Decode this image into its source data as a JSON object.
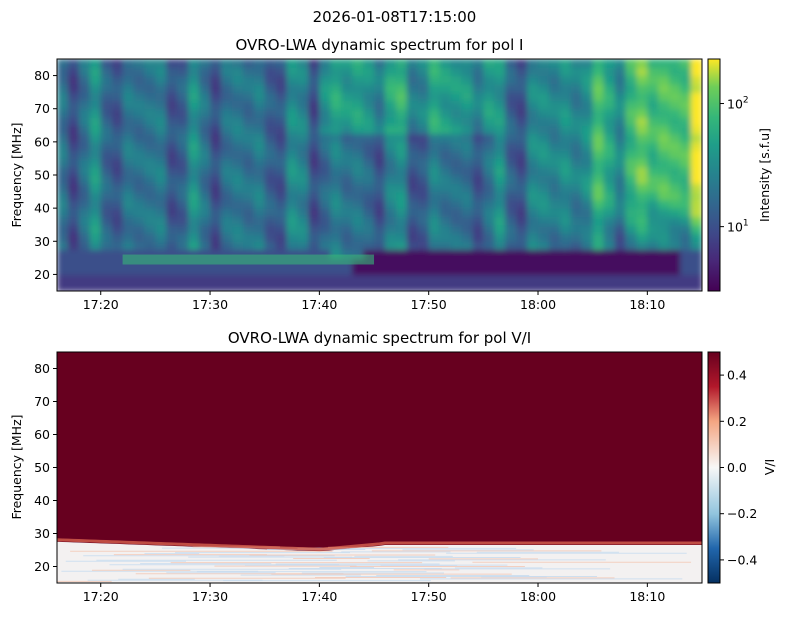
{
  "suptitle": "2026-01-08T17:15:00",
  "chart_data": [
    {
      "type": "heatmap",
      "title": "OVRO-LWA dynamic spectrum for pol I",
      "xlabel": "",
      "ylabel": "Frequency [MHz]",
      "x_ticks": [
        "17:20",
        "17:30",
        "17:40",
        "17:50",
        "18:00",
        "18:10"
      ],
      "x_tick_minutes": [
        20,
        30,
        40,
        50,
        60,
        70
      ],
      "xlim_minutes": [
        16,
        75
      ],
      "y_ticks": [
        20,
        30,
        40,
        50,
        60,
        70,
        80
      ],
      "ylim": [
        15,
        85
      ],
      "colormap": "viridis",
      "colorbar": {
        "label": "Intensity [s.f.u]",
        "scale": "log",
        "range": [
          3,
          230
        ],
        "ticks": [
          {
            "base": "10",
            "exp": "1",
            "value": 10
          },
          {
            "base": "10",
            "exp": "2",
            "value": 100
          }
        ]
      },
      "features": [
        {
          "desc": "bright emission increasing toward the late times, high frequencies",
          "minute_range": [
            60,
            75
          ],
          "freq_range": [
            35,
            85
          ],
          "level_log10": 2.3
        },
        {
          "desc": "broad diffuse emission",
          "minute_range": [
            16,
            60
          ],
          "freq_range": [
            30,
            85
          ],
          "level_log10": 1.3
        },
        {
          "desc": "low-intensity band below the cutoff",
          "minute_range": [
            44,
            73
          ],
          "freq_range": [
            22,
            29
          ],
          "level_log10": 0.5
        },
        {
          "desc": "narrow bright line",
          "minute_range": [
            22,
            45
          ],
          "freq_range": [
            23,
            26
          ],
          "level_log10": 1.9
        }
      ]
    },
    {
      "type": "heatmap",
      "title": "OVRO-LWA dynamic spectrum for pol V/I",
      "xlabel": "",
      "ylabel": "Frequency [MHz]",
      "x_ticks": [
        "17:20",
        "17:30",
        "17:40",
        "17:50",
        "18:00",
        "18:10"
      ],
      "x_tick_minutes": [
        20,
        30,
        40,
        50,
        60,
        70
      ],
      "xlim_minutes": [
        16,
        75
      ],
      "y_ticks": [
        20,
        30,
        40,
        50,
        60,
        70,
        80
      ],
      "ylim": [
        15,
        85
      ],
      "colormap": "RdBu_r",
      "colorbar": {
        "label": "V/I",
        "scale": "linear",
        "range": [
          -0.5,
          0.5
        ],
        "ticks": [
          {
            "text": "−0.4",
            "value": -0.4
          },
          {
            "text": "−0.2",
            "value": -0.2
          },
          {
            "text": "0.0",
            "value": 0
          },
          {
            "text": "0.2",
            "value": 0.2
          },
          {
            "text": "0.4",
            "value": 0.4
          }
        ]
      },
      "features": [
        {
          "desc": "saturated positive polarization above the cutoff",
          "minute_range": [
            16,
            75
          ],
          "freq_range": [
            28,
            85
          ],
          "value": 0.5
        },
        {
          "desc": "near-zero polarization below the cutoff",
          "minute_range": [
            16,
            75
          ],
          "freq_range": [
            15,
            27
          ],
          "value": 0.0
        }
      ]
    }
  ]
}
